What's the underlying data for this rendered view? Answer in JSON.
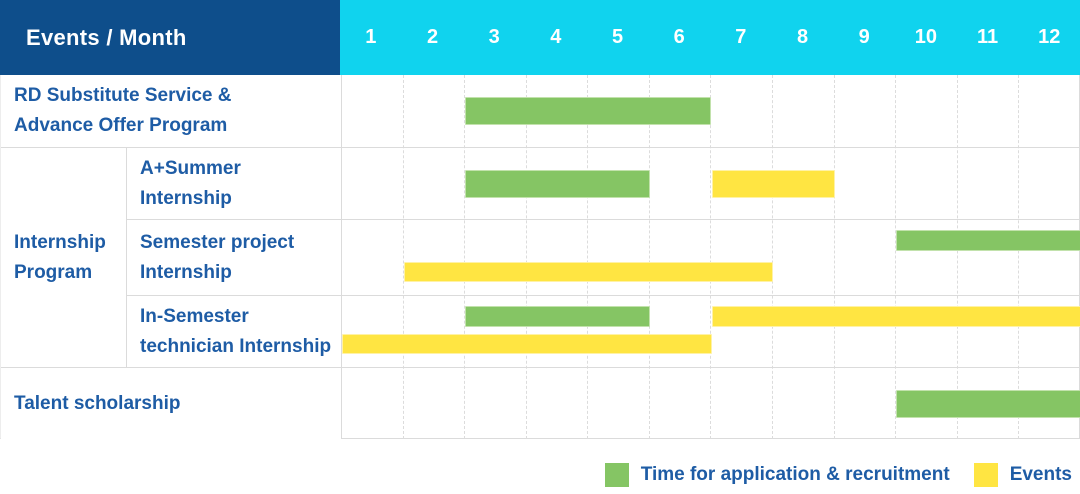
{
  "header": {
    "title": "Events / Month"
  },
  "side": {
    "rd": [
      "RD Substitute Service &",
      "Advance Offer Program"
    ],
    "group": [
      "Internship",
      "Program"
    ],
    "sub1": [
      "A+Summer",
      "Internship"
    ],
    "sub2": [
      "Semester project",
      "Internship"
    ],
    "sub3": [
      "In-Semester",
      "technician Internship"
    ],
    "talent": [
      "Talent scholarship"
    ]
  },
  "colors": {
    "header_bg": "#0E4E8B",
    "months_bg": "#10D3EE",
    "label_text": "#1E5CA5",
    "grid": "#DBDBDB",
    "green": "#85C564",
    "green_edge": "#C2E2AC",
    "yellow": "#FFE542",
    "yellow_edge": "#FFF2A6"
  },
  "chart_data": {
    "type": "table",
    "subtype": "gantt",
    "title": "Events / Month",
    "x_axis": {
      "label": "Month",
      "ticks": [
        "1",
        "2",
        "3",
        "4",
        "5",
        "6",
        "7",
        "8",
        "9",
        "10",
        "11",
        "12"
      ],
      "range": [
        1,
        12
      ]
    },
    "grid": true,
    "legend_position": "bottom-right",
    "rows": [
      {
        "group": null,
        "label": "RD Substitute Service & Advance Offer Program",
        "bars": [
          {
            "kind": "application",
            "month_start": 3,
            "month_end": 6,
            "lane": "center"
          }
        ]
      },
      {
        "group": "Internship Program",
        "label": "A+Summer Internship",
        "bars": [
          {
            "kind": "application",
            "month_start": 3,
            "month_end": 5,
            "lane": "center"
          },
          {
            "kind": "event",
            "month_start": 7,
            "month_end": 8,
            "lane": "center"
          }
        ]
      },
      {
        "group": "Internship Program",
        "label": "Semester project Internship",
        "bars": [
          {
            "kind": "application",
            "month_start": 10,
            "month_end": 12,
            "lane": "top"
          },
          {
            "kind": "event",
            "month_start": 2,
            "month_end": 7,
            "lane": "bottom"
          }
        ]
      },
      {
        "group": "Internship Program",
        "label": "In-Semester technician Internship",
        "bars": [
          {
            "kind": "application",
            "month_start": 3,
            "month_end": 5,
            "lane": "top"
          },
          {
            "kind": "event",
            "month_start": 7,
            "month_end": 12,
            "lane": "top"
          },
          {
            "kind": "event",
            "month_start": 1,
            "month_end": 6,
            "lane": "bottom"
          }
        ]
      },
      {
        "group": null,
        "label": "Talent scholarship",
        "bars": [
          {
            "kind": "application",
            "month_start": 10,
            "month_end": 12,
            "lane": "center"
          }
        ]
      }
    ],
    "legend": [
      {
        "id": "application",
        "label": "Time for application & recruitment",
        "color": "#85C564"
      },
      {
        "id": "events",
        "label": "Events",
        "color": "#FFE542"
      }
    ]
  }
}
